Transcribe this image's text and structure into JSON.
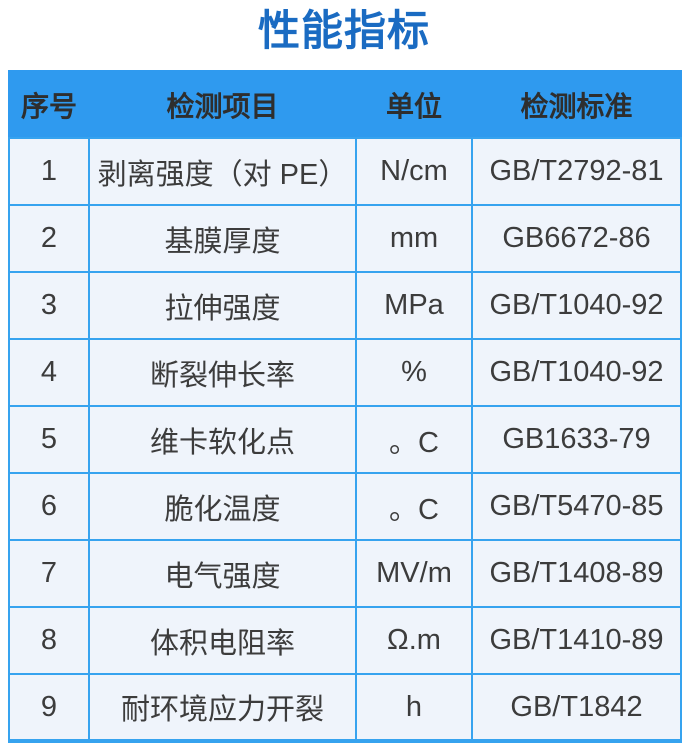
{
  "title": "性能指标",
  "colors": {
    "title_blue": "#1a6bc2",
    "header_background": "#2f9aef",
    "header_divider": "#6fbdf4",
    "cell_background": "#eff4fb",
    "border_blue": "#36a3ef",
    "text_dark": "#3c3c3c"
  },
  "table": {
    "headers": [
      "序号",
      "检测项目",
      "单位",
      "检测标准"
    ],
    "rows": [
      [
        "1",
        "剥离强度（对 PE）",
        "N/cm",
        "GB/T2792-81"
      ],
      [
        "2",
        "基膜厚度",
        "mm",
        "GB6672-86"
      ],
      [
        "3",
        "拉伸强度",
        "MPa",
        "GB/T1040-92"
      ],
      [
        "4",
        "断裂伸长率",
        "%",
        "GB/T1040-92"
      ],
      [
        "5",
        "维卡软化点",
        "。C",
        "GB1633-79"
      ],
      [
        "6",
        "脆化温度",
        "。C",
        "GB/T5470-85"
      ],
      [
        "7",
        "电气强度",
        "MV/m",
        "GB/T1408-89"
      ],
      [
        "8",
        "体积电阻率",
        "Ω.m",
        "GB/T1410-89"
      ],
      [
        "9",
        "耐环境应力开裂",
        "h",
        "GB/T1842"
      ]
    ]
  }
}
